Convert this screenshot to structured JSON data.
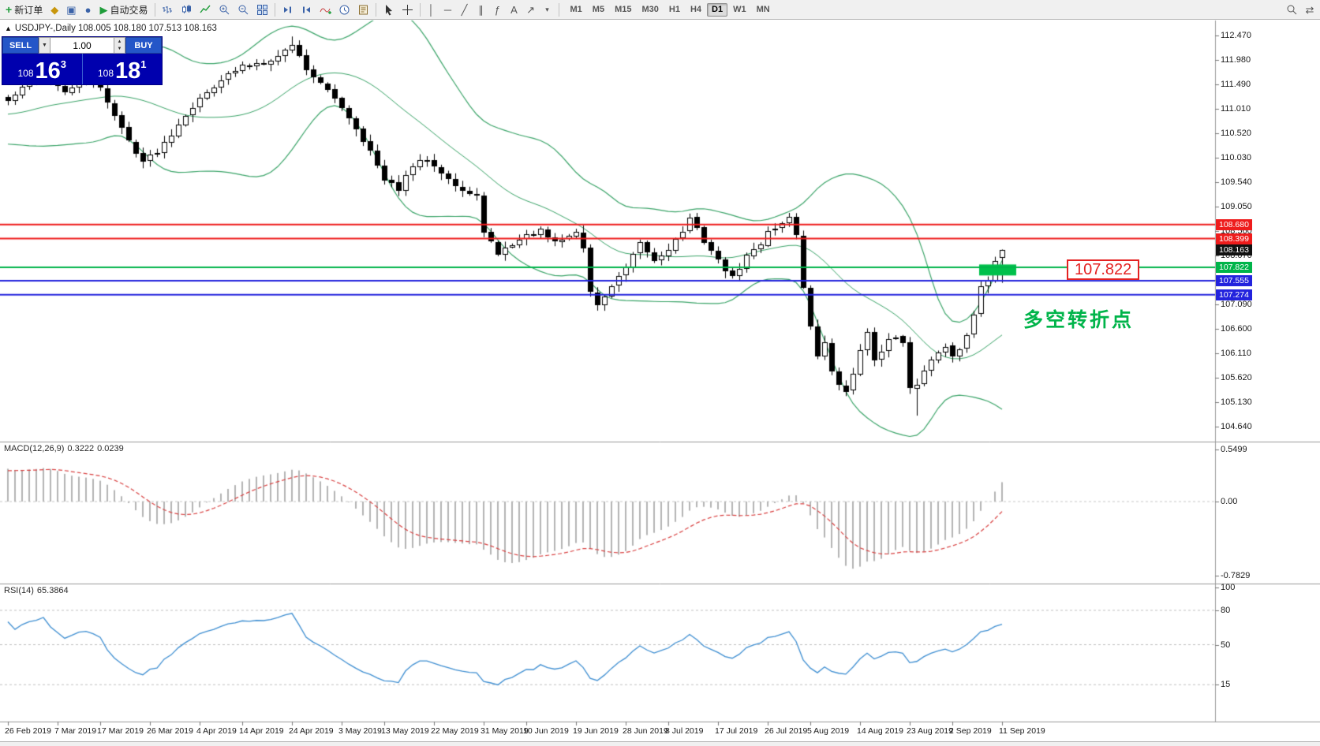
{
  "window": {
    "tick_icon": "▲",
    "title_overlay": "USDJPY-,Daily  108.005 108.180 107.513 108.163"
  },
  "toolbar": {
    "new_order_label": "新订单",
    "autotrading_label": "自动交易",
    "timeframes": [
      "M1",
      "M5",
      "M15",
      "M30",
      "H1",
      "H4",
      "D1",
      "W1",
      "MN"
    ],
    "active_timeframe": "D1"
  },
  "trade_panel": {
    "sell_label": "SELL",
    "buy_label": "BUY",
    "lot_value": "1.00",
    "sell_big": "108",
    "sell_pips": "16",
    "sell_pipette": "3",
    "buy_big": "108",
    "buy_pips": "18",
    "buy_pipette": "1"
  },
  "chart": {
    "annotation": "多空转折点",
    "level_label": "107.822",
    "price_scale": [
      "112.470",
      "111.980",
      "111.490",
      "111.010",
      "110.520",
      "110.030",
      "109.540",
      "109.050",
      "108.560",
      "108.070",
      "107.580",
      "107.090",
      "106.600",
      "106.110",
      "105.620",
      "105.130",
      "104.640"
    ],
    "levels": [
      {
        "name": "resistance-line-1",
        "value": "108.680",
        "price": 108.68,
        "color": "#ee1c1c",
        "line_width": 2
      },
      {
        "name": "resistance-line-2",
        "value": "108.399",
        "price": 108.399,
        "color": "#ee1c1c",
        "line_width": 2
      },
      {
        "name": "current-price",
        "value": "108.163",
        "price": 108.163,
        "color": "#111111",
        "line_width": 0
      },
      {
        "name": "pivot-line-green",
        "value": "107.822",
        "price": 107.822,
        "color": "#00b44a",
        "line_width": 2
      },
      {
        "name": "support-line-1",
        "value": "107.555",
        "price": 107.555,
        "color": "#2323dd",
        "line_width": 2
      },
      {
        "name": "support-line-2",
        "value": "107.274",
        "price": 107.274,
        "color": "#2323dd",
        "line_width": 2
      }
    ],
    "dates": [
      {
        "label": "26 Feb 2019",
        "i": 0
      },
      {
        "label": "7 Mar 2019",
        "i": 7
      },
      {
        "label": "17 Mar 2019",
        "i": 13
      },
      {
        "label": "26 Mar 2019",
        "i": 20
      },
      {
        "label": "4 Apr 2019",
        "i": 27
      },
      {
        "label": "14 Apr 2019",
        "i": 33
      },
      {
        "label": "24 Apr 2019",
        "i": 40
      },
      {
        "label": "3 May 2019",
        "i": 47
      },
      {
        "label": "13 May 2019",
        "i": 53
      },
      {
        "label": "22 May 2019",
        "i": 60
      },
      {
        "label": "31 May 2019",
        "i": 67
      },
      {
        "label": "10 Jun 2019",
        "i": 73
      },
      {
        "label": "19 Jun 2019",
        "i": 80
      },
      {
        "label": "28 Jun 2019",
        "i": 87
      },
      {
        "label": "8 Jul 2019",
        "i": 93
      },
      {
        "label": "17 Jul 2019",
        "i": 100
      },
      {
        "label": "26 Jul 2019",
        "i": 107
      },
      {
        "label": "5 Aug 2019",
        "i": 113
      },
      {
        "label": "14 Aug 2019",
        "i": 120
      },
      {
        "label": "23 Aug 2019",
        "i": 127
      },
      {
        "label": "2 Sep 2019",
        "i": 133
      },
      {
        "label": "11 Sep 2019",
        "i": 140
      }
    ]
  },
  "macd": {
    "label": "MACD(12,26,9)",
    "main_value": "0.3222",
    "signal_value": "0.0239",
    "scale_max": "0.5499",
    "scale_zero": "0.00",
    "scale_min": "-0.7829"
  },
  "rsi": {
    "label": "RSI(14)",
    "value": "65.3864",
    "levels": [
      100,
      80,
      50,
      15
    ]
  },
  "chart_data": {
    "type": "candlestick",
    "symbol": "USDJPY",
    "period": "Daily",
    "candle_count": 141,
    "last_ohlc": {
      "open": 108.005,
      "high": 108.18,
      "low": 107.513,
      "close": 108.163
    },
    "close_anchors": [
      [
        0,
        111.15
      ],
      [
        3,
        111.55
      ],
      [
        5,
        111.75
      ],
      [
        8,
        111.3
      ],
      [
        10,
        111.55
      ],
      [
        13,
        111.45
      ],
      [
        15,
        110.85
      ],
      [
        17,
        110.35
      ],
      [
        19,
        109.95
      ],
      [
        21,
        110.15
      ],
      [
        23,
        110.5
      ],
      [
        25,
        110.9
      ],
      [
        27,
        111.2
      ],
      [
        30,
        111.6
      ],
      [
        33,
        111.85
      ],
      [
        36,
        111.95
      ],
      [
        38,
        112.05
      ],
      [
        40,
        112.3
      ],
      [
        42,
        111.8
      ],
      [
        44,
        111.5
      ],
      [
        47,
        111.05
      ],
      [
        49,
        110.6
      ],
      [
        51,
        110.15
      ],
      [
        53,
        109.55
      ],
      [
        55,
        109.4
      ],
      [
        57,
        109.85
      ],
      [
        59,
        110.0
      ],
      [
        61,
        109.75
      ],
      [
        63,
        109.45
      ],
      [
        65,
        109.25
      ],
      [
        66,
        109.3
      ],
      [
        67,
        108.5
      ],
      [
        69,
        108.1
      ],
      [
        71,
        108.3
      ],
      [
        73,
        108.45
      ],
      [
        75,
        108.55
      ],
      [
        77,
        108.3
      ],
      [
        79,
        108.45
      ],
      [
        80,
        108.55
      ],
      [
        81,
        108.2
      ],
      [
        82,
        107.35
      ],
      [
        83,
        107.05
      ],
      [
        85,
        107.45
      ],
      [
        87,
        107.8
      ],
      [
        89,
        108.3
      ],
      [
        91,
        107.95
      ],
      [
        93,
        108.2
      ],
      [
        95,
        108.55
      ],
      [
        96,
        108.8
      ],
      [
        98,
        108.35
      ],
      [
        100,
        107.95
      ],
      [
        102,
        107.6
      ],
      [
        104,
        108.05
      ],
      [
        106,
        108.3
      ],
      [
        107,
        108.55
      ],
      [
        109,
        108.7
      ],
      [
        110,
        108.85
      ],
      [
        111,
        108.5
      ],
      [
        112,
        107.4
      ],
      [
        113,
        106.6
      ],
      [
        114,
        106.05
      ],
      [
        115,
        106.3
      ],
      [
        116,
        105.75
      ],
      [
        117,
        105.5
      ],
      [
        118,
        105.3
      ],
      [
        119,
        105.7
      ],
      [
        120,
        106.2
      ],
      [
        121,
        106.5
      ],
      [
        122,
        105.95
      ],
      [
        123,
        106.1
      ],
      [
        124,
        106.35
      ],
      [
        125,
        106.45
      ],
      [
        126,
        106.3
      ],
      [
        127,
        105.4
      ],
      [
        128,
        105.5
      ],
      [
        129,
        105.8
      ],
      [
        130,
        105.95
      ],
      [
        131,
        106.1
      ],
      [
        132,
        106.25
      ],
      [
        133,
        106.05
      ],
      [
        134,
        106.2
      ],
      [
        135,
        106.5
      ],
      [
        136,
        106.9
      ],
      [
        137,
        107.4
      ],
      [
        138,
        107.55
      ],
      [
        139,
        107.9
      ],
      [
        140,
        108.163
      ]
    ],
    "wick_overrides": {
      "highs": {
        "40": 112.45
      },
      "lows": {
        "128": 104.85
      }
    },
    "overlays": {
      "bollinger_period": 20,
      "bollinger_dev": 2
    },
    "price_axis": {
      "top_price": 112.47,
      "tick_step": 0.49
    },
    "horizontal_lines": [
      108.68,
      108.399,
      107.822,
      107.555,
      107.274
    ],
    "highlight_zone": {
      "price_top": 107.88,
      "price_bottom": 107.66
    },
    "colors": {
      "bull": "#ffffff",
      "bear": "#000000",
      "outline": "#000000",
      "bollinger": "#3aa468",
      "macd_hist": "#b4b4b4",
      "macd_signal": "#d94040",
      "rsi_line": "#3f8fd2",
      "grid": "#c8c8c8",
      "separator": "#9a9a9a"
    }
  }
}
